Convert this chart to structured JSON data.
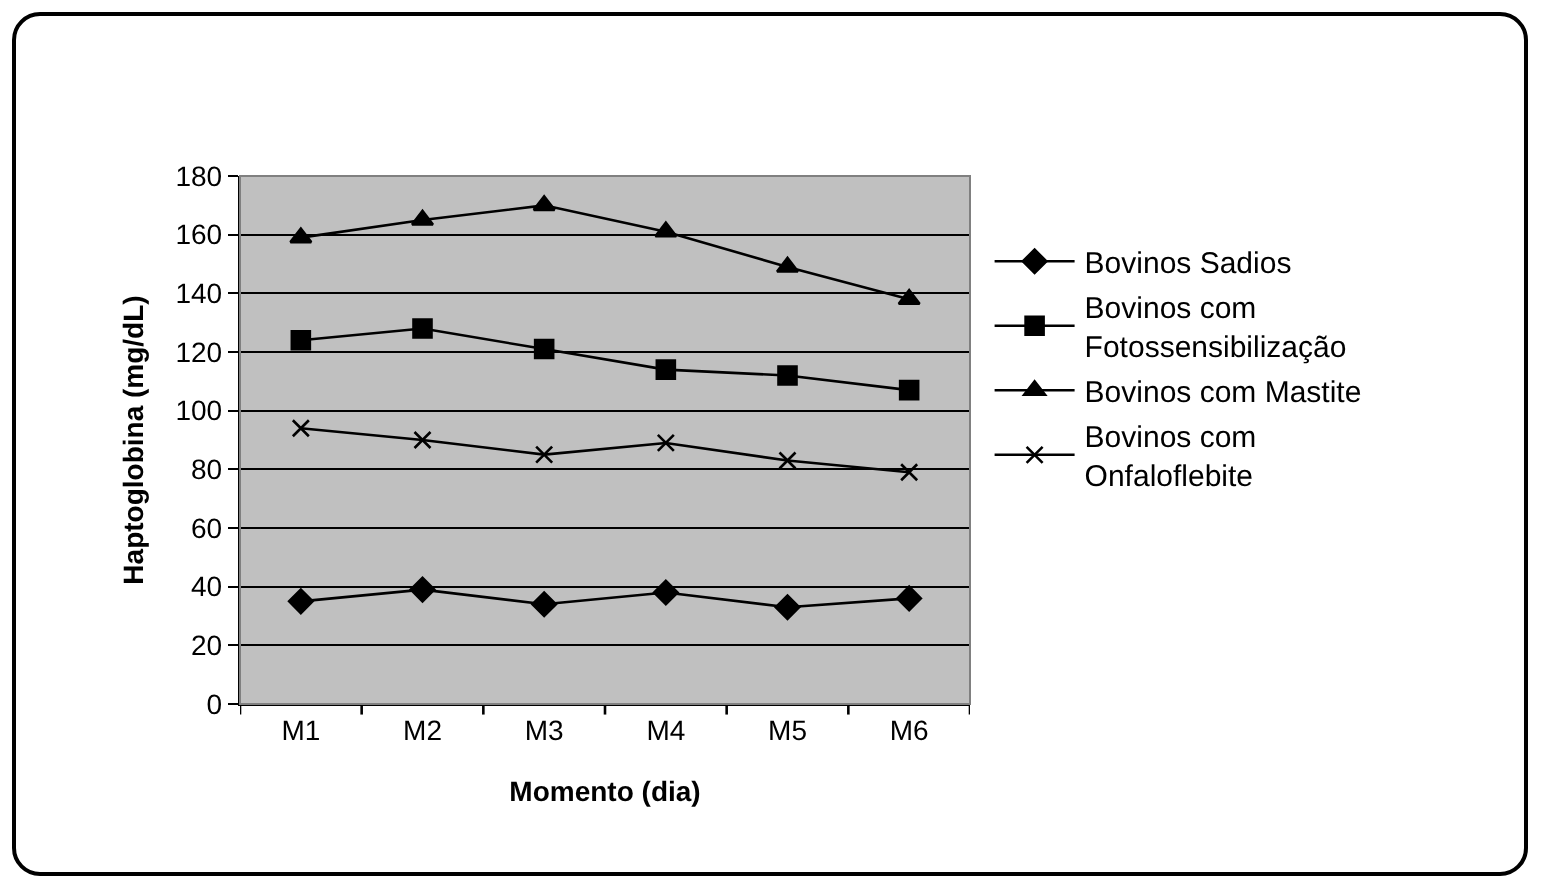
{
  "chart_data": {
    "type": "line",
    "xlabel": "Momento (dia)",
    "ylabel": "Haptoglobina (mg/dL)",
    "categories": [
      "M1",
      "M2",
      "M3",
      "M4",
      "M5",
      "M6"
    ],
    "ylim": [
      0,
      180
    ],
    "yticks": [
      0,
      20,
      40,
      60,
      80,
      100,
      120,
      140,
      160,
      180
    ],
    "grid": "y",
    "legend": "right",
    "line_style": "solid",
    "series": [
      {
        "name": "Bovinos Sadios",
        "color": "#000000",
        "marker": "diamond",
        "values": [
          35,
          39,
          34,
          38,
          33,
          36
        ]
      },
      {
        "name": "Bovinos com Fotossensibilização",
        "color": "#000000",
        "marker": "square",
        "values": [
          124,
          128,
          121,
          114,
          112,
          107
        ]
      },
      {
        "name": "Bovinos com Mastite",
        "color": "#000000",
        "marker": "triangle",
        "values": [
          159,
          165,
          170,
          161,
          149,
          138
        ]
      },
      {
        "name": "Bovinos com Onfaloflebite",
        "color": "#000000",
        "marker": "cross",
        "values": [
          94,
          90,
          85,
          89,
          83,
          79
        ]
      }
    ]
  }
}
